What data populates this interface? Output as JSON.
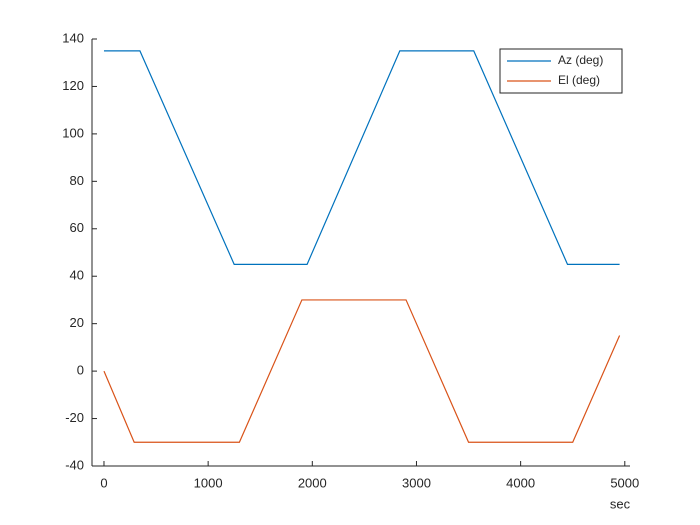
{
  "chart_data": {
    "type": "line",
    "xlabel": "sec",
    "series": [
      {
        "name": "Az (deg)",
        "color": "#0072bd",
        "x": [
          0,
          345,
          1250,
          1950,
          2840,
          3550,
          4450,
          4950
        ],
        "values": [
          135,
          135,
          45,
          45,
          135,
          135,
          45,
          45
        ]
      },
      {
        "name": "El (deg)",
        "color": "#d95319",
        "x": [
          0,
          290,
          1300,
          1900,
          2900,
          3500,
          4500,
          4950
        ],
        "values": [
          0,
          -30,
          -30,
          30,
          30,
          -30,
          -30,
          15
        ]
      }
    ],
    "xlim": [
      -115,
      5050
    ],
    "xticks": [
      0,
      1000,
      2000,
      3000,
      4000,
      5000
    ],
    "ylim": [
      -40,
      140
    ],
    "yticks": [
      -40,
      -20,
      0,
      20,
      40,
      60,
      80,
      100,
      120,
      140
    ],
    "legend": "top-right"
  }
}
